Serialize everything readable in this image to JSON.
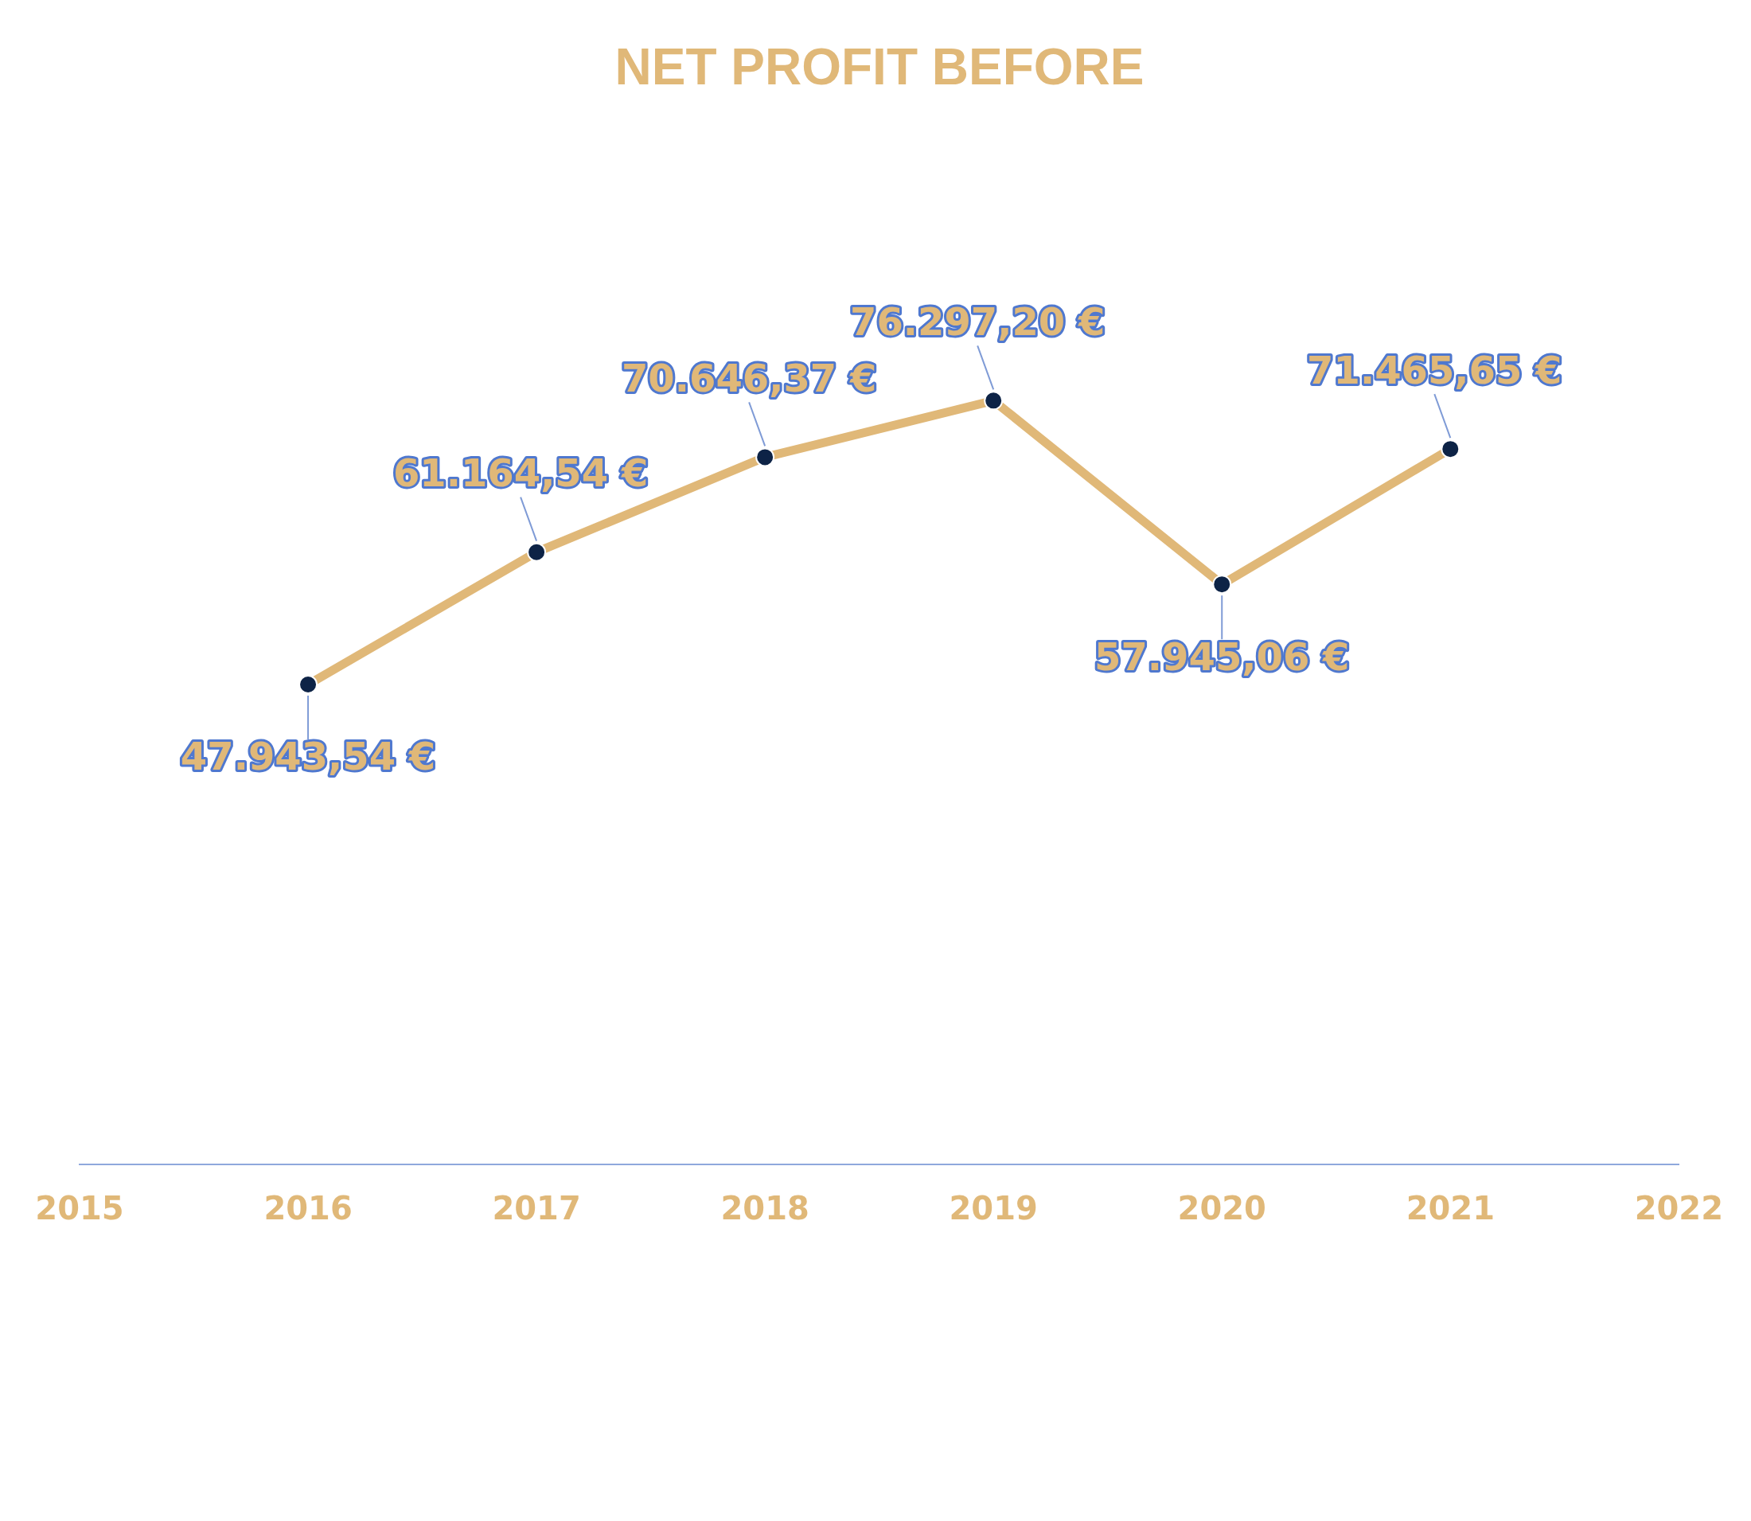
{
  "chart_data": {
    "type": "line",
    "title": "NET PROFIT BEFORE",
    "categories": [
      "2015",
      "2016",
      "2017",
      "2018",
      "2019",
      "2020",
      "2021",
      "2022"
    ],
    "series": [
      {
        "color": "#e0b878",
        "values": [
          null,
          47943.54,
          61164.54,
          70646.37,
          76297.2,
          57945.06,
          71465.65,
          null
        ],
        "value_labels": [
          null,
          "47.943,54 €",
          "61.164,54 €",
          "70.646,37 €",
          "76.297,20 €",
          "57.945,06 €",
          "71.465,65 €",
          null
        ]
      }
    ],
    "tick_labels": "x",
    "grid": false,
    "legend": false,
    "marker": "circle",
    "line_style": "solid"
  }
}
